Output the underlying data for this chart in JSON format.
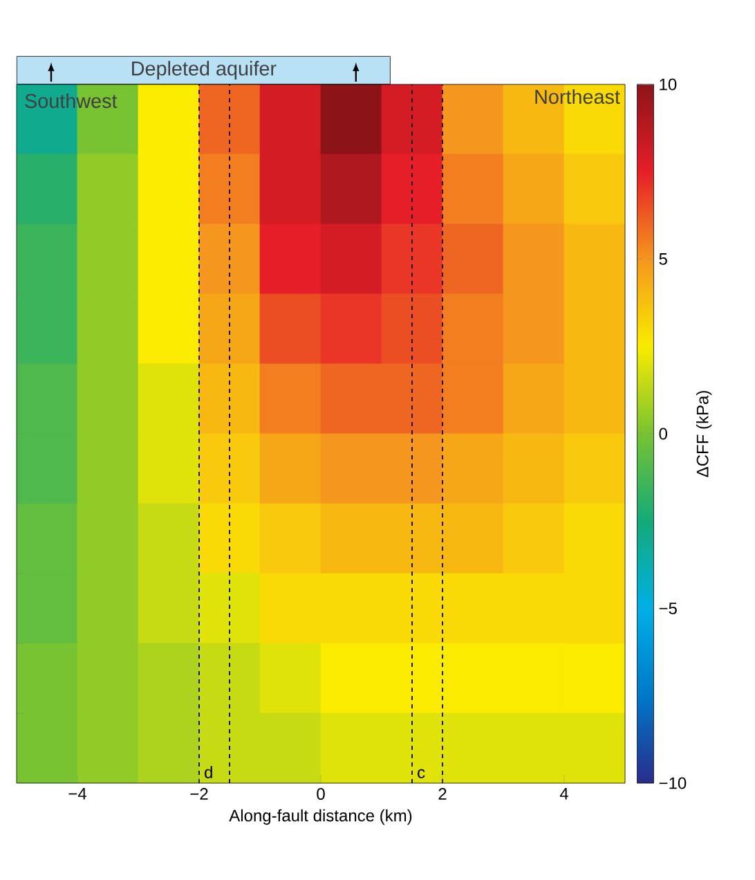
{
  "chart_data": {
    "type": "heatmap",
    "xlabel": "Along-fault distance (km)",
    "clabel": "ΔCFF (kPa)",
    "annotations": [
      "Depleted aquifer",
      "Southwest",
      "Northeast"
    ],
    "x": [
      -4.5,
      -3.5,
      -2.5,
      -1.5,
      -0.5,
      0.5,
      1.5,
      2.5,
      3.5,
      4.5
    ],
    "y_categories": [
      null,
      null,
      null,
      null,
      null,
      null,
      null,
      null,
      null,
      null
    ],
    "xlim": [
      -5,
      5
    ],
    "xticks": [
      {
        "value": -4,
        "label": "−4"
      },
      {
        "value": -2,
        "label": "−2"
      },
      0,
      2,
      4
    ],
    "tick_labels": "x",
    "clim": [
      -10,
      10
    ],
    "cticks": [
      {
        "value": -10,
        "label": "−10"
      },
      {
        "value": -5,
        "label": "−5"
      },
      0,
      5,
      10
    ],
    "cells": [
      [
        -3,
        0,
        2.5,
        6,
        8,
        10,
        8,
        5,
        4,
        3
      ],
      [
        -2,
        0.5,
        2.5,
        5.5,
        8,
        9,
        7.5,
        5.5,
        4.5,
        3.5
      ],
      [
        -1.5,
        0.5,
        2.5,
        5,
        7.5,
        8,
        7,
        6,
        5,
        4
      ],
      [
        -1.5,
        0.5,
        2.5,
        4.5,
        6.5,
        7,
        6.5,
        5.5,
        5,
        4
      ],
      [
        -1,
        0.5,
        2,
        4,
        5.5,
        6,
        6,
        5.5,
        4.5,
        4
      ],
      [
        -1,
        0.5,
        2,
        3.5,
        4.5,
        5,
        5,
        4.5,
        4,
        3.5
      ],
      [
        -0.5,
        0.5,
        1.5,
        3,
        3.5,
        4,
        4,
        4,
        3.5,
        3
      ],
      [
        -0.5,
        0.5,
        1.5,
        2,
        3,
        3,
        3,
        3,
        3,
        3
      ],
      [
        0,
        0.5,
        1,
        1.5,
        2,
        2.5,
        2.5,
        2.5,
        2.5,
        2.5
      ],
      [
        0,
        0.5,
        1,
        1.5,
        1.5,
        2,
        2,
        2,
        2,
        2
      ]
    ],
    "ref_lines": [
      {
        "axis": "x",
        "value": -2,
        "label": "d",
        "line_style": "dashed"
      },
      {
        "axis": "x",
        "value": -1.5,
        "line_style": "dashed"
      },
      {
        "axis": "x",
        "value": 1.5,
        "label": "c",
        "line_style": "dashed"
      },
      {
        "axis": "x",
        "value": 2,
        "line_style": "dashed"
      }
    ]
  }
}
